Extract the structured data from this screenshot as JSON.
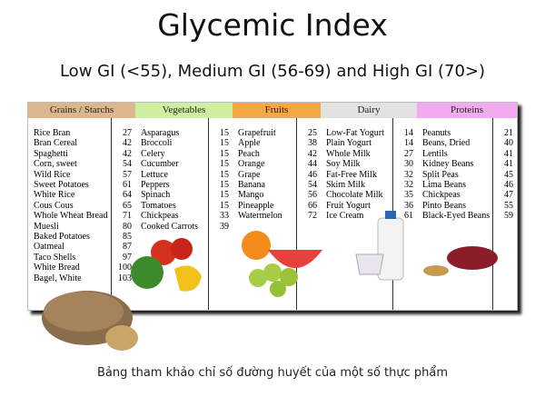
{
  "title": "Glycemic Index",
  "subtitle": "Low GI (<55), Medium GI (56-69) and High GI (70>)",
  "table": {
    "columns": [
      {
        "header": "Grains / Starchs",
        "color": "#dcb68c",
        "items": [
          {
            "name": "Rice Bran",
            "gi": 27
          },
          {
            "name": "Bran Cereal",
            "gi": 42
          },
          {
            "name": "Spaghetti",
            "gi": 42
          },
          {
            "name": "Corn, sweet",
            "gi": 54
          },
          {
            "name": "Wild Rice",
            "gi": 57
          },
          {
            "name": "Sweet Potatoes",
            "gi": 61
          },
          {
            "name": "White Rice",
            "gi": 64
          },
          {
            "name": "Cous Cous",
            "gi": 65
          },
          {
            "name": "Whole Wheat Bread",
            "gi": 71
          },
          {
            "name": "Muesli",
            "gi": 80
          },
          {
            "name": "Baked Potatoes",
            "gi": 85
          },
          {
            "name": "Oatmeal",
            "gi": 87
          },
          {
            "name": "Taco Shells",
            "gi": 97
          },
          {
            "name": "White Bread",
            "gi": 100
          },
          {
            "name": "Bagel, White",
            "gi": 103
          }
        ]
      },
      {
        "header": "Vegetables",
        "color": "#ccf0a0",
        "items": [
          {
            "name": "Asparagus",
            "gi": 15
          },
          {
            "name": "Broccoli",
            "gi": 15
          },
          {
            "name": "Celery",
            "gi": 15
          },
          {
            "name": "Cucumber",
            "gi": 15
          },
          {
            "name": "Lettuce",
            "gi": 15
          },
          {
            "name": "Peppers",
            "gi": 15
          },
          {
            "name": "Spinach",
            "gi": 15
          },
          {
            "name": "Tomatoes",
            "gi": 15
          },
          {
            "name": "Chickpeas",
            "gi": 33
          },
          {
            "name": "Cooked Carrots",
            "gi": 39
          }
        ]
      },
      {
        "header": "Fruits",
        "color": "#f5a843",
        "items": [
          {
            "name": "Grapefruit",
            "gi": 25
          },
          {
            "name": "Apple",
            "gi": 38
          },
          {
            "name": "Peach",
            "gi": 42
          },
          {
            "name": "Orange",
            "gi": 44
          },
          {
            "name": "Grape",
            "gi": 46
          },
          {
            "name": "Banana",
            "gi": 54
          },
          {
            "name": "Mango",
            "gi": 56
          },
          {
            "name": "Pineapple",
            "gi": 66
          },
          {
            "name": "Watermelon",
            "gi": 72
          }
        ]
      },
      {
        "header": "Dairy",
        "color": "#e2e2e2",
        "items": [
          {
            "name": "Low-Fat Yogurt",
            "gi": 14
          },
          {
            "name": "Plain Yogurt",
            "gi": 14
          },
          {
            "name": "Whole Milk",
            "gi": 27
          },
          {
            "name": "Soy Milk",
            "gi": 30
          },
          {
            "name": "Fat-Free Milk",
            "gi": 32
          },
          {
            "name": "Skim Milk",
            "gi": 32
          },
          {
            "name": "Chocolate Milk",
            "gi": 35
          },
          {
            "name": "Fruit Yogurt",
            "gi": 36
          },
          {
            "name": "Ice Cream",
            "gi": 61
          }
        ]
      },
      {
        "header": "Proteins",
        "color": "#f2aaf0",
        "items": [
          {
            "name": "Peanuts",
            "gi": 21
          },
          {
            "name": "Beans, Dried",
            "gi": 40
          },
          {
            "name": "Lentils",
            "gi": 41
          },
          {
            "name": "Kidney Beans",
            "gi": 41
          },
          {
            "name": "Split Peas",
            "gi": 45
          },
          {
            "name": "Lima Beans",
            "gi": 46
          },
          {
            "name": "Chickpeas",
            "gi": 47
          },
          {
            "name": "Pinto Beans",
            "gi": 55
          },
          {
            "name": "Black-Eyed Beans",
            "gi": 59
          }
        ]
      }
    ]
  },
  "caption": "Bảng tham khảo chỉ số đường huyết của một số thực phẩm"
}
